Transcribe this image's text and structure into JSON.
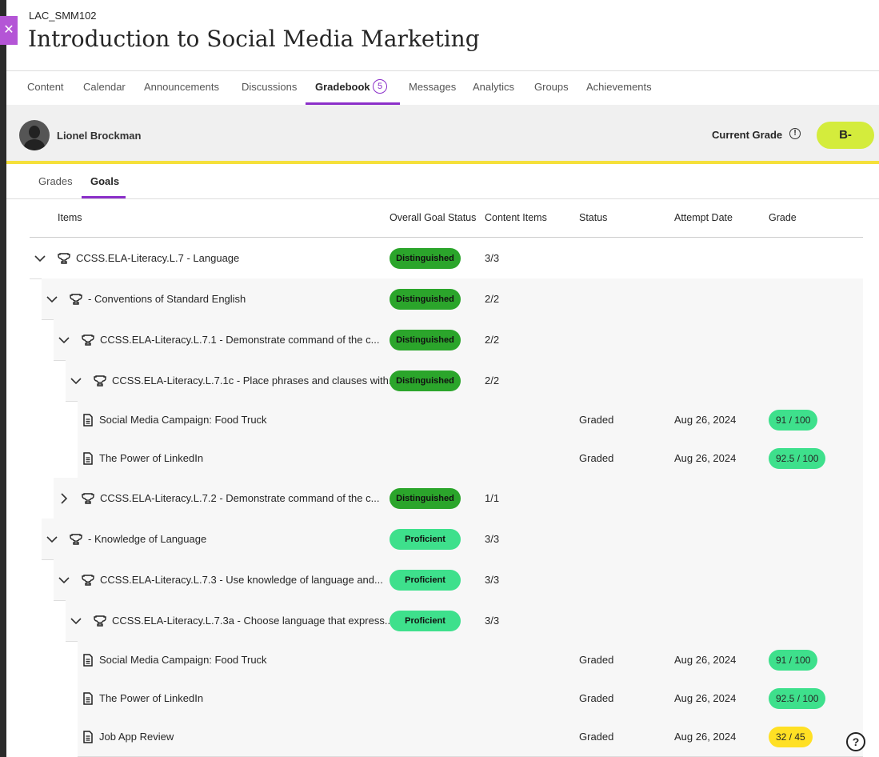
{
  "course": {
    "code": "LAC_SMM102",
    "title": "Introduction to Social Media Marketing"
  },
  "nav": {
    "tabs": [
      "Content",
      "Calendar",
      "Announcements",
      "Discussions",
      "Gradebook",
      "Messages",
      "Analytics",
      "Groups",
      "Achievements"
    ],
    "active": 4,
    "badge": "5"
  },
  "student": {
    "name": "Lionel Brockman",
    "current_grade_label": "Current Grade",
    "current_grade": "B-"
  },
  "subtabs": {
    "tabs": [
      "Grades",
      "Goals"
    ],
    "active": 1
  },
  "table": {
    "headers": [
      "Items",
      "Overall Goal Status",
      "Content Items",
      "Status",
      "Attempt Date",
      "Grade"
    ],
    "rows": [
      {
        "level": 0,
        "kind": "goal",
        "expanded": true,
        "label": "CCSS.ELA-Literacy.L.7 - Language",
        "goal_status": "Distinguished",
        "status_color": "#2ba52b",
        "content_items": "3/3"
      },
      {
        "level": 1,
        "kind": "goal",
        "expanded": true,
        "label": "- Conventions of Standard English",
        "goal_status": "Distinguished",
        "status_color": "#2ba52b",
        "content_items": "2/2"
      },
      {
        "level": 2,
        "kind": "goal",
        "expanded": true,
        "label": "CCSS.ELA-Literacy.L.7.1 - Demonstrate command of the c...",
        "goal_status": "Distinguished",
        "status_color": "#2ba52b",
        "content_items": "2/2"
      },
      {
        "level": 3,
        "kind": "goal",
        "expanded": true,
        "label": "CCSS.ELA-Literacy.L.7.1c - Place phrases and clauses with...",
        "goal_status": "Distinguished",
        "status_color": "#2ba52b",
        "content_items": "2/2"
      },
      {
        "level": 4,
        "kind": "item",
        "label": "Social Media Campaign: Food Truck",
        "status": "Graded",
        "attempt_date": "Aug 26, 2024",
        "grade": "91 / 100",
        "grade_color": "#3ee08c"
      },
      {
        "level": 4,
        "kind": "item",
        "label": "The Power of LinkedIn",
        "status": "Graded",
        "attempt_date": "Aug 26, 2024",
        "grade": "92.5 / 100",
        "grade_color": "#3ee08c"
      },
      {
        "level": 2,
        "kind": "goal",
        "expanded": false,
        "label": "CCSS.ELA-Literacy.L.7.2 - Demonstrate command of the c...",
        "goal_status": "Distinguished",
        "status_color": "#2ba52b",
        "content_items": "1/1"
      },
      {
        "level": 1,
        "kind": "goal",
        "expanded": true,
        "label": "- Knowledge of Language",
        "goal_status": "Proficient",
        "status_color": "#3ee08c",
        "content_items": "3/3"
      },
      {
        "level": 2,
        "kind": "goal",
        "expanded": true,
        "label": "CCSS.ELA-Literacy.L.7.3 - Use knowledge of language and...",
        "goal_status": "Proficient",
        "status_color": "#3ee08c",
        "content_items": "3/3"
      },
      {
        "level": 3,
        "kind": "goal",
        "expanded": true,
        "label": "CCSS.ELA-Literacy.L.7.3a - Choose language that express...",
        "goal_status": "Proficient",
        "status_color": "#3ee08c",
        "content_items": "3/3"
      },
      {
        "level": 4,
        "kind": "item",
        "label": "Social Media Campaign: Food Truck",
        "status": "Graded",
        "attempt_date": "Aug 26, 2024",
        "grade": "91 / 100",
        "grade_color": "#3ee08c"
      },
      {
        "level": 4,
        "kind": "item",
        "label": "The Power of LinkedIn",
        "status": "Graded",
        "attempt_date": "Aug 26, 2024",
        "grade": "92.5 / 100",
        "grade_color": "#3ee08c"
      },
      {
        "level": 4,
        "kind": "item",
        "label": "Job App Review",
        "status": "Graded",
        "attempt_date": "Aug 26, 2024",
        "grade": "32 / 45",
        "grade_color": "#ffe024"
      }
    ]
  }
}
